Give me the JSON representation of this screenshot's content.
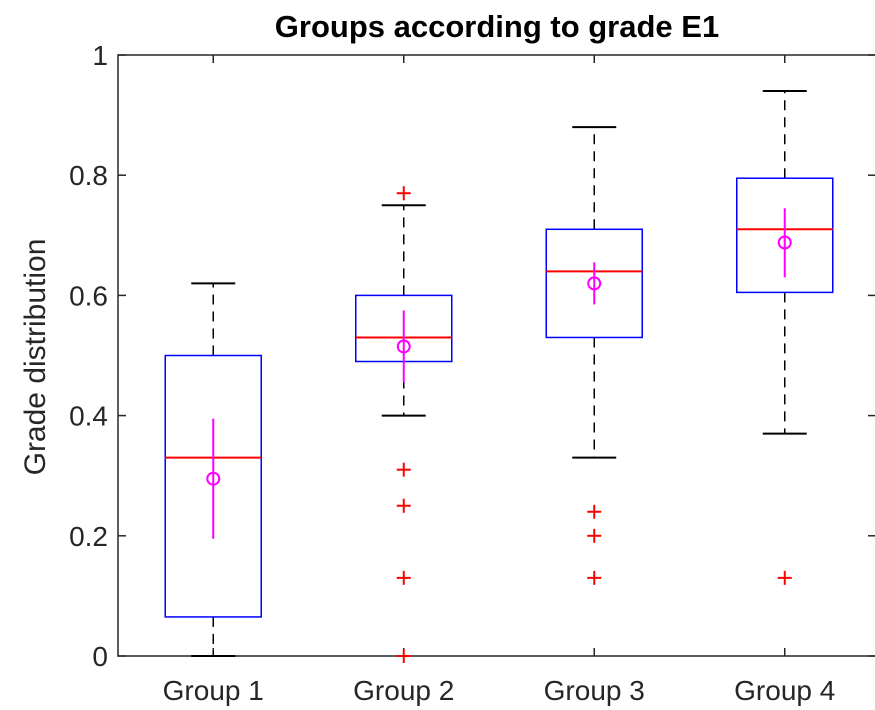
{
  "chart_data": {
    "type": "boxplot",
    "title": "Groups according to grade E1",
    "xlabel": "",
    "ylabel": "Grade distribution",
    "ylim": [
      0,
      1
    ],
    "yticks": [
      0,
      0.2,
      0.4,
      0.6,
      0.8,
      1
    ],
    "ytick_labels": [
      "0",
      "0.2",
      "0.4",
      "0.6",
      "0.8",
      "1"
    ],
    "grid": false,
    "categories": [
      "Group 1",
      "Group 2",
      "Group 3",
      "Group 4"
    ],
    "boxes": [
      {
        "q1": 0.065,
        "median": 0.33,
        "q3": 0.5,
        "whisker_low": 0.0,
        "whisker_high": 0.62,
        "outliers": [],
        "mean": 0.295,
        "mean_err_low": 0.195,
        "mean_err_high": 0.395
      },
      {
        "q1": 0.49,
        "median": 0.53,
        "q3": 0.6,
        "whisker_low": 0.4,
        "whisker_high": 0.75,
        "outliers": [
          0.77,
          0.31,
          0.25,
          0.13,
          0.0
        ],
        "mean": 0.515,
        "mean_err_low": 0.455,
        "mean_err_high": 0.575
      },
      {
        "q1": 0.53,
        "median": 0.64,
        "q3": 0.71,
        "whisker_low": 0.33,
        "whisker_high": 0.88,
        "outliers": [
          0.24,
          0.2,
          0.13
        ],
        "mean": 0.62,
        "mean_err_low": 0.585,
        "mean_err_high": 0.655
      },
      {
        "q1": 0.605,
        "median": 0.71,
        "q3": 0.795,
        "whisker_low": 0.37,
        "whisker_high": 0.94,
        "outliers": [
          0.13
        ],
        "mean": 0.688,
        "mean_err_low": 0.63,
        "mean_err_high": 0.745
      }
    ],
    "colors": {
      "box": "#0000ff",
      "median": "#ff0000",
      "whisker": "#000000",
      "outlier": "#ff0000",
      "mean": "#ff00ff",
      "axis": "#262626"
    }
  }
}
